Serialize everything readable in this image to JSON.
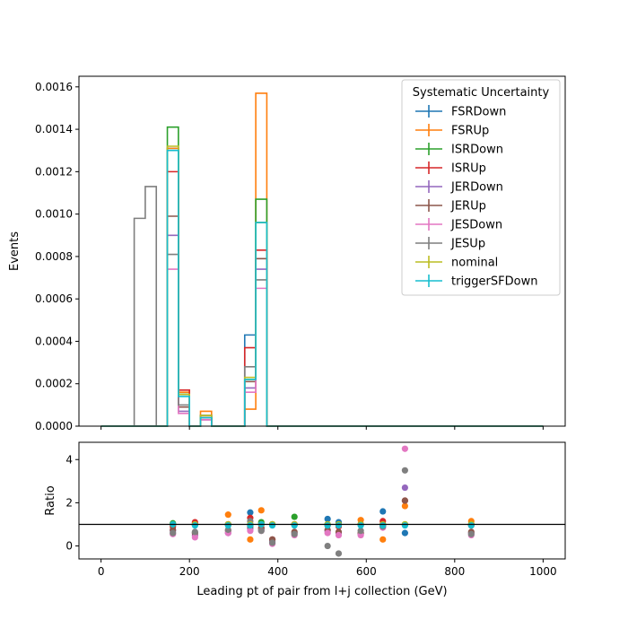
{
  "chart_data": [
    {
      "type": "step",
      "panel": "main",
      "xlabel": "",
      "ylabel": "Events",
      "xlim": [
        -50,
        1050
      ],
      "ylim": [
        0,
        0.00165
      ],
      "x_ticks": [
        0,
        200,
        400,
        600,
        800,
        1000
      ],
      "y_ticks": [
        0,
        0.0002,
        0.0004,
        0.0006,
        0.0008,
        0.001,
        0.0012,
        0.0014,
        0.0016
      ],
      "y_tick_labels": [
        "0.0000",
        "0.0002",
        "0.0004",
        "0.0006",
        "0.0008",
        "0.0010",
        "0.0012",
        "0.0014",
        "0.0016"
      ],
      "bin_edges": [
        0,
        25,
        50,
        75,
        100,
        125,
        150,
        175,
        200,
        225,
        250,
        275,
        300,
        325,
        350,
        375,
        400,
        425,
        450,
        475,
        500,
        525,
        550,
        575,
        600,
        625,
        650,
        675,
        700,
        725,
        750,
        775,
        800,
        825,
        850,
        875,
        900,
        925,
        950,
        975,
        1000
      ],
      "legend_title": "Systematic Uncertainty",
      "legend_position": "upper right",
      "series": [
        {
          "name": "FSRDown",
          "color": "#1f77b4",
          "values": [
            0,
            0,
            0,
            0,
            0,
            0,
            0.00131,
            0.00015,
            0,
            5e-05,
            0,
            0,
            0,
            0.00043,
            0.00096,
            0,
            0,
            0,
            0,
            0,
            0,
            0,
            0,
            0,
            0,
            0,
            0,
            0,
            0,
            0,
            0,
            0,
            0,
            0,
            0,
            0,
            0,
            0,
            0,
            0
          ]
        },
        {
          "name": "FSRUp",
          "color": "#ff7f0e",
          "values": [
            0,
            0,
            0,
            0,
            0,
            0,
            0.00131,
            0.00016,
            0,
            7e-05,
            0,
            0,
            0,
            8e-05,
            0.00157,
            0,
            0,
            0,
            0,
            0,
            0,
            0,
            0,
            0,
            0,
            0,
            0,
            0,
            0,
            0,
            0,
            0,
            0,
            0,
            0,
            0,
            0,
            0,
            0,
            0
          ]
        },
        {
          "name": "ISRDown",
          "color": "#2ca02c",
          "values": [
            0,
            0,
            0,
            0,
            0,
            0,
            0.00141,
            0.00015,
            0,
            5e-05,
            0,
            0,
            0,
            0.00022,
            0.00107,
            0,
            0,
            0,
            0,
            0,
            0,
            0,
            0,
            0,
            0,
            0,
            0,
            0,
            0,
            0,
            0,
            0,
            0,
            0,
            0,
            0,
            0,
            0,
            0,
            0
          ]
        },
        {
          "name": "ISRUp",
          "color": "#d62728",
          "values": [
            0,
            0,
            0,
            0,
            0,
            0,
            0.0012,
            0.00017,
            0,
            4e-05,
            0,
            0,
            0,
            0.00037,
            0.00083,
            0,
            0,
            0,
            0,
            0,
            0,
            0,
            0,
            0,
            0,
            0,
            0,
            0,
            0,
            0,
            0,
            0,
            0,
            0,
            0,
            0,
            0,
            0,
            0,
            0
          ]
        },
        {
          "name": "JERDown",
          "color": "#9467bd",
          "values": [
            0,
            0,
            0,
            0,
            0,
            0,
            0.0009,
            7e-05,
            0,
            3e-05,
            0,
            0,
            0,
            0.00018,
            0.00074,
            0,
            0,
            0,
            0,
            0,
            0,
            0,
            0,
            0,
            0,
            0,
            0,
            0,
            0,
            0,
            0,
            0,
            0,
            0,
            0,
            0,
            0,
            0,
            0,
            0
          ]
        },
        {
          "name": "JERUp",
          "color": "#8c564b",
          "values": [
            0,
            0,
            0,
            0,
            0,
            0,
            0.00099,
            9e-05,
            0,
            4e-05,
            0,
            0,
            0,
            0.00021,
            0.00079,
            0,
            0,
            0,
            0,
            0,
            0,
            0,
            0,
            0,
            0,
            0,
            0,
            0,
            0,
            0,
            0,
            0,
            0,
            0,
            0,
            0,
            0,
            0,
            0,
            0
          ]
        },
        {
          "name": "JESDown",
          "color": "#e377c2",
          "values": [
            0,
            0,
            0,
            0,
            0,
            0,
            0.00074,
            6e-05,
            0,
            3e-05,
            0,
            0,
            0,
            0.00016,
            0.00065,
            0,
            0,
            0,
            0,
            0,
            0,
            0,
            0,
            0,
            0,
            0,
            0,
            0,
            0,
            0,
            0,
            0,
            0,
            0,
            0,
            0,
            0,
            0,
            0,
            0
          ]
        },
        {
          "name": "JESUp",
          "color": "#7f7f7f",
          "values": [
            0,
            0,
            0,
            0.00098,
            0.00113,
            0,
            0.00081,
            0.0001,
            0,
            5e-05,
            0,
            0,
            0,
            0.00028,
            0.00069,
            0,
            0,
            0,
            0,
            0,
            0,
            0,
            0,
            0,
            0,
            0,
            0,
            0,
            0,
            0,
            0,
            0,
            0,
            0,
            0,
            0,
            0,
            0,
            0,
            0
          ]
        },
        {
          "name": "nominal",
          "color": "#bcbd22",
          "values": [
            0,
            0,
            0,
            0,
            0,
            0,
            0.00132,
            0.00015,
            0,
            5e-05,
            0,
            0,
            0,
            0.00023,
            0.00096,
            0,
            0,
            0,
            0,
            0,
            0,
            0,
            0,
            0,
            0,
            0,
            0,
            0,
            0,
            0,
            0,
            0,
            0,
            0,
            0,
            0,
            0,
            0,
            0,
            0
          ]
        },
        {
          "name": "triggerSFDown",
          "color": "#17becf",
          "values": [
            0,
            0,
            0,
            0,
            0,
            0,
            0.0013,
            0.00014,
            0,
            4e-05,
            0,
            0,
            0,
            0.00022,
            0.00096,
            0,
            0,
            0,
            0,
            0,
            0,
            0,
            0,
            0,
            0,
            0,
            0,
            0,
            0,
            0,
            0,
            0,
            0,
            0,
            0,
            0,
            0,
            0,
            0,
            0
          ]
        }
      ]
    },
    {
      "type": "scatter",
      "panel": "ratio",
      "xlabel": "Leading pt of pair from l+j collection (GeV)",
      "ylabel": "Ratio",
      "xlim": [
        -50,
        1050
      ],
      "ylim": [
        -0.6,
        4.8
      ],
      "x_ticks": [
        0,
        200,
        400,
        600,
        800,
        1000
      ],
      "y_ticks": [
        0,
        2,
        4
      ],
      "reference_line": 1,
      "x": [
        162.5,
        212.5,
        287.5,
        337.5,
        362.5,
        387.5,
        437.5,
        512.5,
        537.5,
        587.5,
        637.5,
        687.5,
        837.5
      ],
      "series": [
        {
          "name": "FSRDown",
          "color": "#1f77b4",
          "values": [
            1.0,
            1.0,
            1.0,
            1.55,
            1.0,
            1.0,
            1.0,
            1.25,
            1.1,
            1.0,
            1.6,
            0.6,
            1.0
          ]
        },
        {
          "name": "FSRUp",
          "color": "#ff7f0e",
          "values": [
            1.0,
            1.0,
            1.45,
            0.3,
            1.65,
            1.0,
            1.0,
            1.0,
            1.0,
            1.2,
            0.3,
            1.85,
            1.15
          ]
        },
        {
          "name": "ISRDown",
          "color": "#2ca02c",
          "values": [
            1.05,
            1.0,
            1.0,
            1.0,
            1.1,
            1.0,
            1.35,
            1.0,
            1.0,
            1.0,
            1.0,
            1.0,
            1.0
          ]
        },
        {
          "name": "ISRUp",
          "color": "#d62728",
          "values": [
            0.9,
            1.1,
            1.0,
            1.3,
            0.85,
            0.3,
            1.0,
            0.95,
            0.9,
            1.0,
            1.15,
            2.1,
            0.95
          ]
        },
        {
          "name": "JERDown",
          "color": "#9467bd",
          "values": [
            0.7,
            0.5,
            0.6,
            0.8,
            0.75,
            0.2,
            0.6,
            0.7,
            0.6,
            0.55,
            0.9,
            2.7,
            0.6
          ]
        },
        {
          "name": "JERUp",
          "color": "#8c564b",
          "values": [
            0.75,
            0.6,
            0.7,
            0.9,
            0.8,
            0.3,
            0.65,
            0.75,
            0.65,
            0.6,
            0.95,
            2.1,
            0.65
          ]
        },
        {
          "name": "JESDown",
          "color": "#e377c2",
          "values": [
            0.55,
            0.4,
            0.6,
            0.7,
            0.7,
            0.1,
            0.5,
            0.6,
            0.5,
            0.5,
            0.85,
            4.5,
            0.5
          ]
        },
        {
          "name": "JESUp",
          "color": "#7f7f7f",
          "values": [
            0.6,
            0.65,
            0.75,
            1.15,
            0.7,
            0.15,
            0.55,
            0.0,
            -0.35,
            0.7,
            0.9,
            3.5,
            0.55
          ]
        },
        {
          "name": "nominal",
          "color": "#bcbd22",
          "values": [
            1.0,
            1.0,
            1.0,
            1.0,
            1.0,
            1.0,
            1.0,
            1.0,
            1.0,
            1.0,
            1.0,
            1.0,
            1.0
          ]
        },
        {
          "name": "triggerSFDown",
          "color": "#17becf",
          "values": [
            1.0,
            0.95,
            0.95,
            0.95,
            1.0,
            0.95,
            0.95,
            0.95,
            0.95,
            0.95,
            0.95,
            0.95,
            0.95
          ]
        }
      ]
    }
  ]
}
